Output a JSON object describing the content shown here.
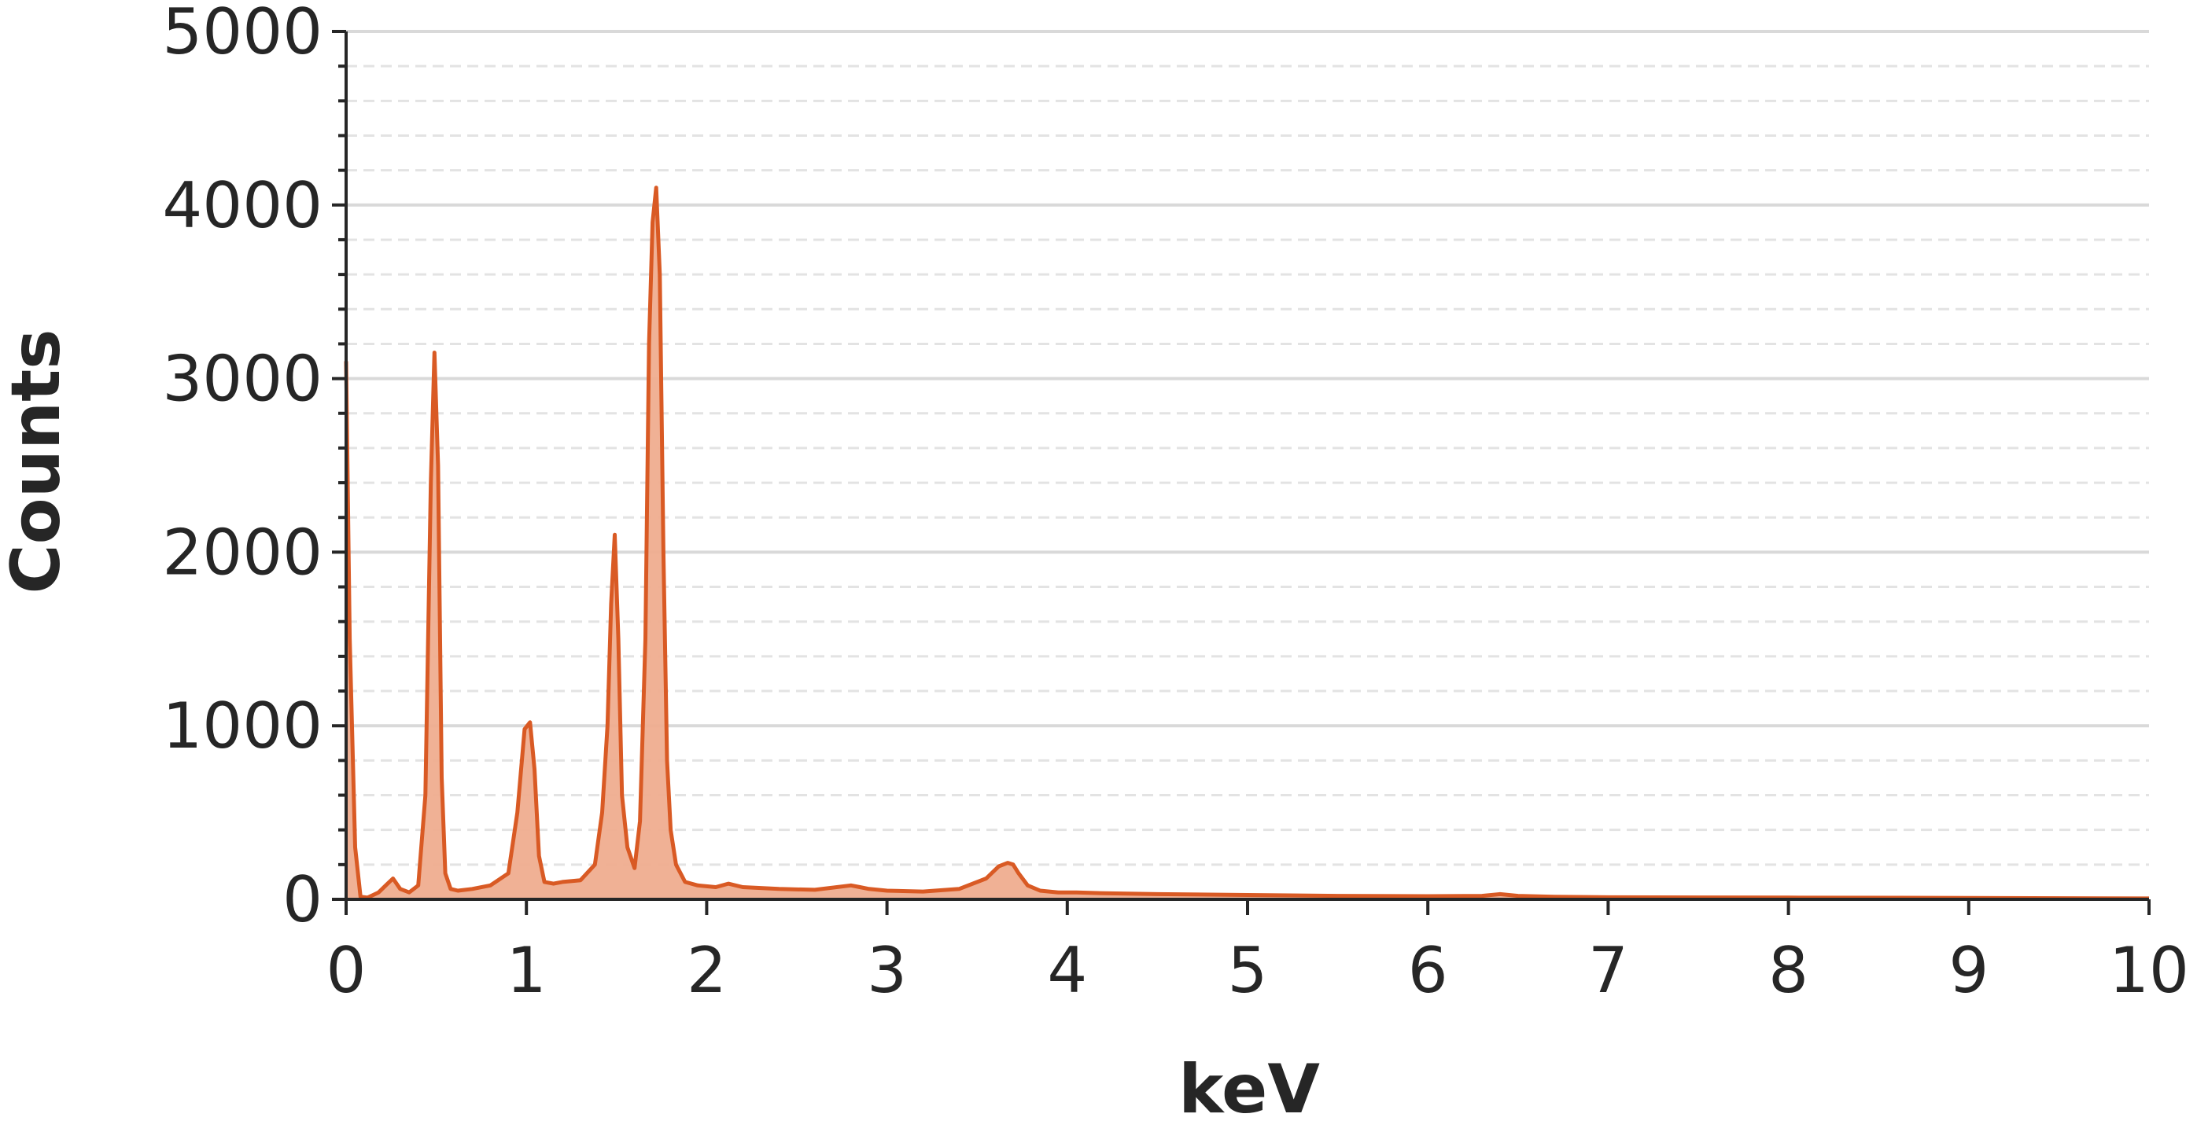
{
  "chart_data": {
    "type": "area",
    "xlabel": "keV",
    "ylabel": "Counts",
    "xlim": [
      0,
      10
    ],
    "ylim": [
      0,
      5000
    ],
    "x_ticks": [
      "0",
      "1",
      "2",
      "3",
      "4",
      "5",
      "6",
      "7",
      "8",
      "9",
      "10"
    ],
    "y_ticks": [
      "0",
      "1000",
      "2000",
      "3000",
      "4000",
      "5000"
    ],
    "grid": "horizontal major solid, minor dashed",
    "line_color": "#d95a24",
    "fill_color": "#efad8f",
    "series": [
      {
        "x": [
          0.0,
          0.02,
          0.05,
          0.08,
          0.12,
          0.18,
          0.22,
          0.26,
          0.3,
          0.35,
          0.4,
          0.44,
          0.47,
          0.49,
          0.51,
          0.53,
          0.55,
          0.58,
          0.62,
          0.7,
          0.8,
          0.9,
          0.95,
          0.99,
          1.02,
          1.045,
          1.07,
          1.1,
          1.15,
          1.2,
          1.3,
          1.38,
          1.42,
          1.45,
          1.47,
          1.49,
          1.51,
          1.53,
          1.56,
          1.6,
          1.63,
          1.66,
          1.68,
          1.7,
          1.72,
          1.74,
          1.76,
          1.78,
          1.8,
          1.83,
          1.88,
          1.95,
          2.05,
          2.12,
          2.2,
          2.4,
          2.6,
          2.8,
          2.85,
          2.9,
          3.0,
          3.2,
          3.4,
          3.55,
          3.62,
          3.67,
          3.7,
          3.73,
          3.78,
          3.85,
          3.95,
          4.05,
          4.2,
          4.5,
          5.0,
          5.5,
          6.0,
          6.3,
          6.4,
          6.5,
          6.7,
          7.0,
          8.0,
          9.0,
          10.0
        ],
        "y": [
          3100,
          1500,
          300,
          15,
          10,
          40,
          80,
          120,
          60,
          40,
          80,
          600,
          2400,
          3150,
          2500,
          700,
          150,
          60,
          50,
          60,
          80,
          150,
          500,
          980,
          1020,
          750,
          250,
          100,
          90,
          100,
          110,
          200,
          500,
          1000,
          1700,
          2100,
          1500,
          600,
          300,
          180,
          450,
          1500,
          3200,
          3900,
          4100,
          3600,
          2000,
          800,
          400,
          200,
          100,
          80,
          70,
          90,
          70,
          60,
          55,
          80,
          70,
          60,
          50,
          45,
          60,
          120,
          190,
          210,
          200,
          150,
          80,
          50,
          40,
          40,
          35,
          30,
          25,
          20,
          18,
          20,
          30,
          20,
          15,
          12,
          10,
          8,
          5
        ]
      }
    ]
  }
}
